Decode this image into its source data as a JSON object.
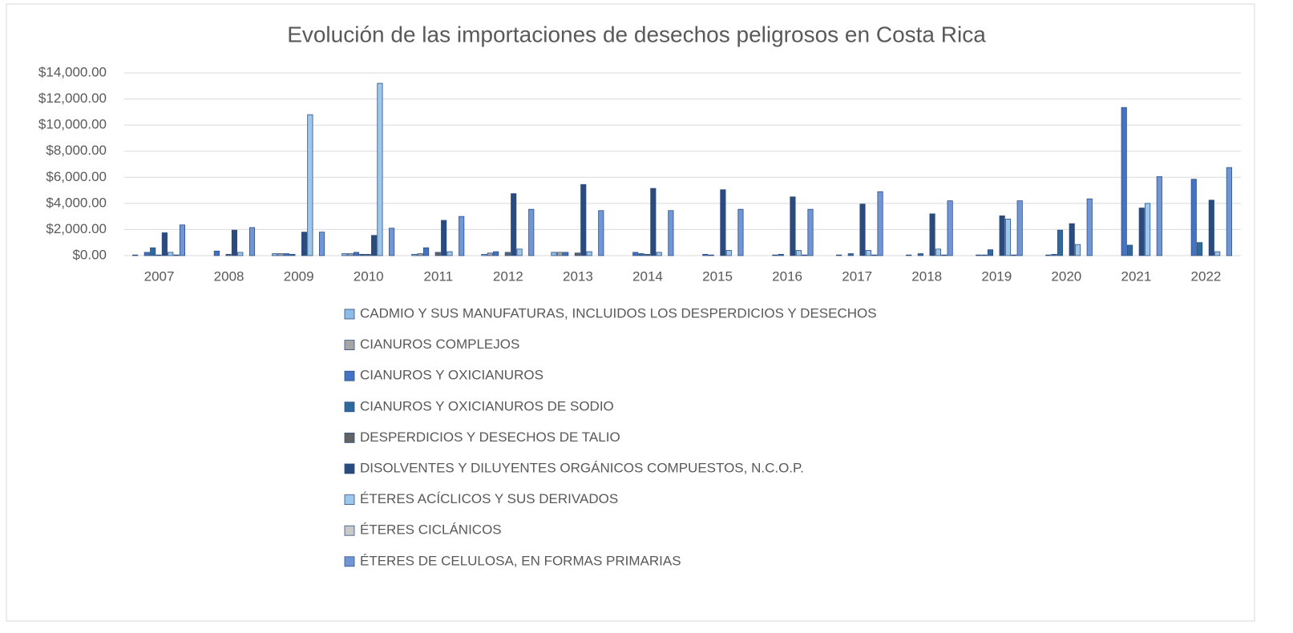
{
  "chart_data": {
    "type": "bar",
    "title": "Evolución de las importaciones de desechos peligrosos en Costa Rica",
    "categories": [
      "2007",
      "2008",
      "2009",
      "2010",
      "2011",
      "2012",
      "2013",
      "2014",
      "2015",
      "2016",
      "2017",
      "2018",
      "2019",
      "2020",
      "2021",
      "2022"
    ],
    "ylim": [
      0,
      14000
    ],
    "yticks": [
      {
        "value": 0,
        "label": "$0.00"
      },
      {
        "value": 2000,
        "label": "$2,000.00"
      },
      {
        "value": 4000,
        "label": "$4,000.00"
      },
      {
        "value": 6000,
        "label": "$6,000.00"
      },
      {
        "value": 8000,
        "label": "$8,000.00"
      },
      {
        "value": 10000,
        "label": "$10,000.00"
      },
      {
        "value": 12000,
        "label": "$12,000.00"
      },
      {
        "value": 14000,
        "label": "$14,000.00"
      }
    ],
    "grid": true,
    "legend": "bottom",
    "series": [
      {
        "name": "CADMIO Y SUS MANUFATURAS, INCLUIDOS LOS DESPERDICIOS Y DESECHOS",
        "color": "#8fbce6",
        "values": [
          50,
          0,
          150,
          150,
          100,
          100,
          250,
          0,
          0,
          0,
          0,
          0,
          0,
          0,
          0,
          0
        ]
      },
      {
        "name": "CIANUROS COMPLEJOS",
        "color": "#a5a5a5",
        "values": [
          0,
          0,
          150,
          150,
          150,
          200,
          250,
          0,
          0,
          0,
          50,
          50,
          50,
          50,
          0,
          0
        ]
      },
      {
        "name": "CIANUROS Y OXICIANUROS",
        "color": "#4472c4",
        "values": [
          250,
          350,
          150,
          250,
          600,
          300,
          250,
          250,
          100,
          50,
          0,
          0,
          50,
          100,
          11350,
          5850
        ]
      },
      {
        "name": "CIANUROS Y OXICIANUROS DE SODIO",
        "color": "#2e6a9e",
        "values": [
          600,
          0,
          100,
          100,
          0,
          0,
          0,
          150,
          50,
          100,
          150,
          150,
          450,
          1950,
          800,
          1000
        ]
      },
      {
        "name": "DESPERDICIOS Y DESECHOS DE TALIO",
        "color": "#636363",
        "values": [
          50,
          100,
          0,
          100,
          250,
          250,
          200,
          100,
          0,
          0,
          0,
          0,
          0,
          0,
          0,
          0
        ]
      },
      {
        "name": "DISOLVENTES Y DILUYENTES ORGÁNICOS COMPUESTOS, N.C.O.P.",
        "color": "#2b4a7e",
        "values": [
          1750,
          1950,
          1800,
          1550,
          2700,
          4750,
          5450,
          5150,
          5050,
          4500,
          3950,
          3200,
          3050,
          2450,
          3650,
          4250
        ]
      },
      {
        "name": "ÉTERES ACÍCLICOS Y SUS DERIVADOS",
        "color": "#9dc8ec",
        "values": [
          250,
          250,
          10800,
          13200,
          300,
          500,
          300,
          250,
          400,
          400,
          400,
          500,
          2800,
          850,
          4000,
          300
        ]
      },
      {
        "name": "ÉTERES CICLÁNICOS",
        "color": "#c9c9c9",
        "values": [
          50,
          0,
          0,
          0,
          0,
          0,
          0,
          0,
          0,
          50,
          50,
          50,
          50,
          0,
          0,
          0
        ]
      },
      {
        "name": "ÉTERES DE CELULOSA, EN FORMAS PRIMARIAS",
        "color": "#7196d8",
        "values": [
          2350,
          2150,
          1800,
          2100,
          3000,
          3550,
          3450,
          3450,
          3550,
          3550,
          4900,
          4200,
          4200,
          4350,
          6050,
          6750
        ]
      }
    ]
  }
}
